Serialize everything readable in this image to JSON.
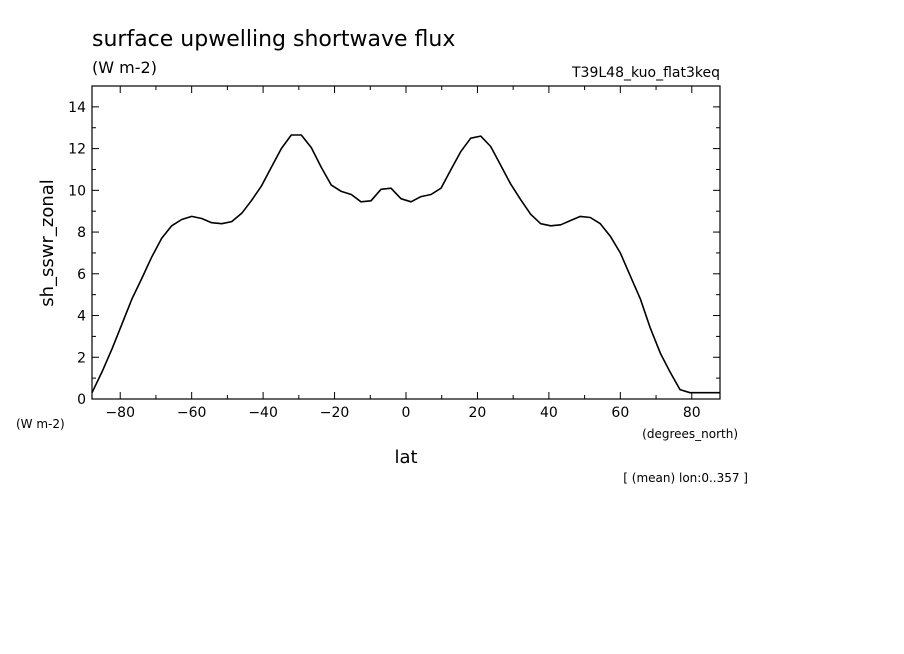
{
  "chart_data": {
    "type": "line",
    "title": "surface upwelling shortwave flux",
    "title_units": "(W m-2)",
    "run_label": "T39L48_kuo_flat3keq",
    "xlabel": "lat",
    "x_units": "(degrees_north)",
    "ylabel": "sh_sswr_zonal",
    "y_units": "(W m-2)",
    "footnote": "[ (mean) lon:0..357 ]",
    "xlim": [
      -87.9,
      87.9
    ],
    "ylim": [
      0,
      15
    ],
    "x_ticks": [
      -80,
      -60,
      -40,
      -20,
      0,
      20,
      40,
      60,
      80
    ],
    "y_ticks": [
      0,
      2,
      4,
      6,
      8,
      10,
      12,
      14
    ],
    "line_color": "#000000",
    "series": [
      {
        "x": [
          -87.9,
          -85.1,
          -82.3,
          -79.5,
          -76.7,
          -73.9,
          -71.2,
          -68.4,
          -65.6,
          -62.8,
          -60.0,
          -57.2,
          -54.4,
          -51.6,
          -48.8,
          -46.0,
          -43.3,
          -40.5,
          -37.7,
          -34.9,
          -32.1,
          -29.3,
          -26.5,
          -23.7,
          -20.9,
          -18.1,
          -15.3,
          -12.6,
          -9.8,
          -7.0,
          -4.2,
          -1.4,
          1.4,
          4.2,
          7.0,
          9.8,
          12.6,
          15.3,
          18.1,
          20.9,
          23.7,
          26.5,
          29.3,
          32.1,
          34.9,
          37.7,
          40.5,
          43.3,
          46.0,
          48.8,
          51.6,
          54.4,
          57.2,
          60.0,
          62.8,
          65.6,
          68.4,
          71.2,
          73.9,
          76.7,
          79.5,
          82.3,
          85.1,
          87.9
        ],
        "y": [
          0.3,
          1.3,
          2.4,
          3.6,
          4.8,
          5.8,
          6.8,
          7.7,
          8.3,
          8.6,
          8.75,
          8.65,
          8.45,
          8.4,
          8.5,
          8.9,
          9.5,
          10.2,
          11.1,
          12.0,
          12.65,
          12.65,
          12.05,
          11.1,
          10.25,
          9.95,
          9.8,
          9.45,
          9.5,
          10.05,
          10.1,
          9.6,
          9.45,
          9.7,
          9.8,
          10.1,
          11.0,
          11.85,
          12.5,
          12.6,
          12.1,
          11.2,
          10.3,
          9.55,
          8.85,
          8.4,
          8.3,
          8.35,
          8.55,
          8.75,
          8.7,
          8.4,
          7.8,
          7.0,
          5.9,
          4.8,
          3.4,
          2.2,
          1.3,
          0.45,
          0.3,
          0.3,
          0.3,
          0.3
        ]
      }
    ]
  }
}
